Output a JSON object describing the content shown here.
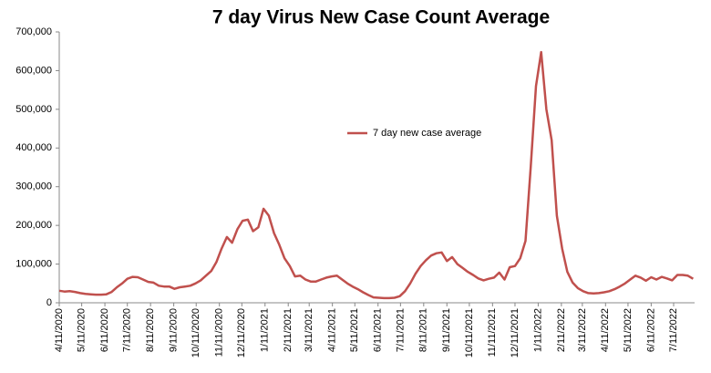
{
  "chart_data": {
    "type": "line",
    "title": "7 day Virus New Case Count Average",
    "x": [
      "4/11/2020",
      "4/18/2020",
      "4/25/2020",
      "5/2/2020",
      "5/9/2020",
      "5/16/2020",
      "5/23/2020",
      "5/30/2020",
      "6/6/2020",
      "6/13/2020",
      "6/20/2020",
      "6/27/2020",
      "7/4/2020",
      "7/11/2020",
      "7/18/2020",
      "7/25/2020",
      "8/1/2020",
      "8/8/2020",
      "8/15/2020",
      "8/22/2020",
      "8/29/2020",
      "9/5/2020",
      "9/12/2020",
      "9/19/2020",
      "9/26/2020",
      "10/3/2020",
      "10/10/2020",
      "10/17/2020",
      "10/24/2020",
      "10/31/2020",
      "11/7/2020",
      "11/14/2020",
      "11/21/2020",
      "11/28/2020",
      "12/5/2020",
      "12/12/2020",
      "12/19/2020",
      "12/26/2020",
      "1/2/2021",
      "1/9/2021",
      "1/16/2021",
      "1/23/2021",
      "1/30/2021",
      "2/6/2021",
      "2/13/2021",
      "2/20/2021",
      "2/27/2021",
      "3/6/2021",
      "3/13/2021",
      "3/20/2021",
      "3/27/2021",
      "4/3/2021",
      "4/10/2021",
      "4/17/2021",
      "4/24/2021",
      "5/1/2021",
      "5/8/2021",
      "5/15/2021",
      "5/22/2021",
      "5/29/2021",
      "6/5/2021",
      "6/12/2021",
      "6/19/2021",
      "6/26/2021",
      "7/3/2021",
      "7/10/2021",
      "7/17/2021",
      "7/24/2021",
      "7/31/2021",
      "8/7/2021",
      "8/14/2021",
      "8/21/2021",
      "8/28/2021",
      "9/4/2021",
      "9/11/2021",
      "9/18/2021",
      "9/25/2021",
      "10/2/2021",
      "10/9/2021",
      "10/16/2021",
      "10/23/2021",
      "10/30/2021",
      "11/6/2021",
      "11/13/2021",
      "11/20/2021",
      "11/27/2021",
      "12/4/2021",
      "12/11/2021",
      "12/18/2021",
      "12/25/2021",
      "1/1/2022",
      "1/8/2022",
      "1/15/2022",
      "1/22/2022",
      "1/29/2022",
      "2/5/2022",
      "2/12/2022",
      "2/19/2022",
      "2/26/2022",
      "3/5/2022",
      "3/12/2022",
      "3/19/2022",
      "3/26/2022",
      "4/2/2022",
      "4/9/2022",
      "4/16/2022",
      "4/23/2022",
      "4/30/2022",
      "5/7/2022",
      "5/14/2022",
      "5/21/2022",
      "5/28/2022",
      "6/4/2022",
      "6/11/2022",
      "6/18/2022",
      "6/25/2022",
      "7/2/2022",
      "7/9/2022",
      "7/16/2022",
      "7/23/2022",
      "7/30/2022",
      "8/6/2022"
    ],
    "series": [
      {
        "name": "7 day new case average",
        "color": "#c0504d",
        "values": [
          31000,
          29000,
          30000,
          28000,
          25000,
          23000,
          22000,
          21000,
          21000,
          22000,
          28000,
          40000,
          50000,
          62000,
          67000,
          66000,
          60000,
          54000,
          52000,
          44000,
          42000,
          42000,
          36000,
          40000,
          42000,
          44000,
          50000,
          58000,
          70000,
          82000,
          105000,
          140000,
          170000,
          155000,
          190000,
          212000,
          215000,
          185000,
          195000,
          243000,
          225000,
          180000,
          150000,
          115000,
          95000,
          68000,
          70000,
          60000,
          55000,
          55000,
          60000,
          65000,
          68000,
          70000,
          60000,
          50000,
          42000,
          35000,
          27000,
          20000,
          14000,
          13000,
          12000,
          12000,
          13000,
          17000,
          30000,
          50000,
          75000,
          95000,
          110000,
          122000,
          128000,
          130000,
          108000,
          118000,
          100000,
          90000,
          80000,
          72000,
          63000,
          58000,
          62000,
          65000,
          78000,
          60000,
          92000,
          95000,
          115000,
          160000,
          350000,
          560000,
          648000,
          500000,
          420000,
          225000,
          140000,
          80000,
          52000,
          38000,
          30000,
          25000,
          24000,
          25000,
          27000,
          30000,
          35000,
          42000,
          50000,
          60000,
          70000,
          65000,
          57000,
          66000,
          60000,
          67000,
          63000,
          58000,
          72000,
          72000,
          70000,
          62000
        ]
      }
    ],
    "xlim": [
      "4/11/2020",
      "8/8/2022"
    ],
    "xticks": [
      "4/11/2020",
      "5/11/2020",
      "6/11/2020",
      "7/11/2020",
      "8/11/2020",
      "9/11/2020",
      "10/11/2020",
      "11/11/2020",
      "12/11/2020",
      "1/11/2021",
      "2/11/2021",
      "3/11/2021",
      "4/11/2021",
      "5/11/2021",
      "6/11/2021",
      "7/11/2021",
      "8/11/2021",
      "9/11/2021",
      "10/11/2021",
      "11/11/2021",
      "12/11/2021",
      "1/11/2022",
      "2/11/2022",
      "3/11/2022",
      "4/11/2022",
      "5/11/2022",
      "6/11/2022",
      "7/11/2022"
    ],
    "ylim": [
      0,
      700000
    ],
    "yticks": [
      {
        "value": 0,
        "label": "0"
      },
      {
        "value": 100000,
        "label": "100,000"
      },
      {
        "value": 200000,
        "label": "200,000"
      },
      {
        "value": 300000,
        "label": "300,000"
      },
      {
        "value": 400000,
        "label": "400,000"
      },
      {
        "value": 500000,
        "label": "500,000"
      },
      {
        "value": 600000,
        "label": "600,000"
      },
      {
        "value": 700000,
        "label": "700,000"
      }
    ],
    "grid": false
  }
}
